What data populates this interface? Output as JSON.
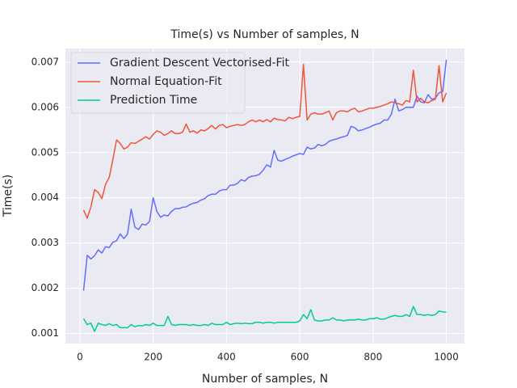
{
  "chart_data": {
    "type": "line",
    "title": "Time(s) vs Number of samples, N",
    "xlabel": "Number of samples, N",
    "ylabel": "Time(s)",
    "x": [
      10,
      20,
      30,
      40,
      50,
      60,
      70,
      80,
      90,
      100,
      110,
      120,
      130,
      140,
      150,
      160,
      170,
      180,
      190,
      200,
      210,
      220,
      230,
      240,
      250,
      260,
      270,
      280,
      290,
      300,
      310,
      320,
      330,
      340,
      350,
      360,
      370,
      380,
      390,
      400,
      410,
      420,
      430,
      440,
      450,
      460,
      470,
      480,
      490,
      500,
      510,
      520,
      530,
      540,
      550,
      560,
      570,
      580,
      590,
      600,
      610,
      620,
      630,
      640,
      650,
      660,
      670,
      680,
      690,
      700,
      710,
      720,
      730,
      740,
      750,
      760,
      770,
      780,
      790,
      800,
      810,
      820,
      830,
      840,
      850,
      860,
      870,
      880,
      890,
      900,
      910,
      920,
      930,
      940,
      950,
      960,
      970,
      980,
      990,
      1000
    ],
    "series": [
      {
        "name": "Gradient Descent Vectorised-Fit",
        "color": "#636efa",
        "values": [
          0.00195,
          0.00273,
          0.00265,
          0.00272,
          0.00285,
          0.00278,
          0.00292,
          0.0029,
          0.00302,
          0.00305,
          0.0032,
          0.0031,
          0.0032,
          0.00375,
          0.00335,
          0.0033,
          0.00342,
          0.0034,
          0.00348,
          0.004,
          0.0037,
          0.00357,
          0.00362,
          0.0036,
          0.0037,
          0.00376,
          0.00376,
          0.00379,
          0.0038,
          0.00385,
          0.00388,
          0.0039,
          0.00395,
          0.00398,
          0.00405,
          0.00408,
          0.00408,
          0.00415,
          0.00418,
          0.00418,
          0.00428,
          0.00428,
          0.00432,
          0.0044,
          0.00437,
          0.00445,
          0.00448,
          0.00449,
          0.00452,
          0.00461,
          0.00473,
          0.00468,
          0.00505,
          0.00483,
          0.00481,
          0.00485,
          0.00488,
          0.00492,
          0.00495,
          0.00498,
          0.00496,
          0.00512,
          0.00508,
          0.0051,
          0.00518,
          0.00515,
          0.00518,
          0.00525,
          0.00528,
          0.0053,
          0.00533,
          0.00535,
          0.00538,
          0.00558,
          0.00555,
          0.00548,
          0.0055,
          0.00553,
          0.00556,
          0.0056,
          0.00563,
          0.00565,
          0.00572,
          0.00572,
          0.00585,
          0.00618,
          0.00592,
          0.00595,
          0.006,
          0.006,
          0.006,
          0.00625,
          0.00612,
          0.0061,
          0.00628,
          0.00618,
          0.0062,
          0.00632,
          0.00635,
          0.00705
        ]
      },
      {
        "name": "Normal Equation-Fit",
        "color": "#ef553b",
        "values": [
          0.00373,
          0.00355,
          0.0038,
          0.00418,
          0.00412,
          0.00398,
          0.0043,
          0.00445,
          0.00485,
          0.00528,
          0.0052,
          0.00508,
          0.00512,
          0.00522,
          0.0052,
          0.00525,
          0.0053,
          0.00535,
          0.0053,
          0.0054,
          0.00548,
          0.00545,
          0.00538,
          0.00542,
          0.00548,
          0.00542,
          0.00542,
          0.00545,
          0.00563,
          0.00545,
          0.00548,
          0.00543,
          0.0055,
          0.00548,
          0.00553,
          0.0056,
          0.00552,
          0.0056,
          0.00562,
          0.00555,
          0.00558,
          0.0056,
          0.00562,
          0.0056,
          0.00562,
          0.00568,
          0.00572,
          0.00568,
          0.00572,
          0.00568,
          0.00573,
          0.00568,
          0.00576,
          0.00573,
          0.00572,
          0.0057,
          0.00578,
          0.00575,
          0.00578,
          0.0058,
          0.00695,
          0.00572,
          0.00585,
          0.00588,
          0.00585,
          0.00585,
          0.00588,
          0.00592,
          0.00572,
          0.00588,
          0.00592,
          0.00592,
          0.0059,
          0.00595,
          0.00598,
          0.0059,
          0.00592,
          0.00595,
          0.00598,
          0.00598,
          0.006,
          0.00602,
          0.00605,
          0.00608,
          0.00612,
          0.0061,
          0.00608,
          0.00605,
          0.00615,
          0.00612,
          0.00682,
          0.00612,
          0.0062,
          0.00612,
          0.0061,
          0.00615,
          0.00618,
          0.00692,
          0.00612,
          0.00632
        ]
      },
      {
        "name": "Prediction Time",
        "color": "#00cc96",
        "values": [
          0.00133,
          0.0012,
          0.00123,
          0.00105,
          0.00123,
          0.0012,
          0.00118,
          0.00122,
          0.00118,
          0.0012,
          0.00113,
          0.00113,
          0.00113,
          0.0012,
          0.00115,
          0.00118,
          0.00117,
          0.0012,
          0.00118,
          0.00123,
          0.00118,
          0.00118,
          0.00118,
          0.00138,
          0.0012,
          0.00118,
          0.0012,
          0.0012,
          0.0012,
          0.00118,
          0.0012,
          0.00118,
          0.00118,
          0.0012,
          0.00118,
          0.00123,
          0.0012,
          0.0012,
          0.0012,
          0.00125,
          0.0012,
          0.00122,
          0.00123,
          0.00122,
          0.00123,
          0.00122,
          0.00122,
          0.00125,
          0.00125,
          0.00123,
          0.00125,
          0.00125,
          0.00123,
          0.00125,
          0.00125,
          0.00125,
          0.00125,
          0.00125,
          0.00125,
          0.00128,
          0.00142,
          0.00133,
          0.00153,
          0.0013,
          0.00128,
          0.00128,
          0.0013,
          0.0013,
          0.00135,
          0.0013,
          0.0013,
          0.00128,
          0.0013,
          0.0013,
          0.0013,
          0.00132,
          0.0013,
          0.0013,
          0.00133,
          0.00133,
          0.00135,
          0.00132,
          0.00132,
          0.00135,
          0.00138,
          0.0014,
          0.00138,
          0.00138,
          0.00142,
          0.00138,
          0.0016,
          0.00142,
          0.00142,
          0.0014,
          0.00142,
          0.0014,
          0.00142,
          0.0015,
          0.00148,
          0.00147
        ]
      }
    ],
    "xlim": [
      -39.5,
      1049.5
    ],
    "ylim": [
      0.00078,
      0.0073
    ],
    "xticks": [
      0,
      200,
      400,
      600,
      800,
      1000
    ],
    "yticks": [
      0.001,
      0.002,
      0.003,
      0.004,
      0.005,
      0.006,
      0.007
    ],
    "grid": true,
    "legend": "upper left"
  }
}
